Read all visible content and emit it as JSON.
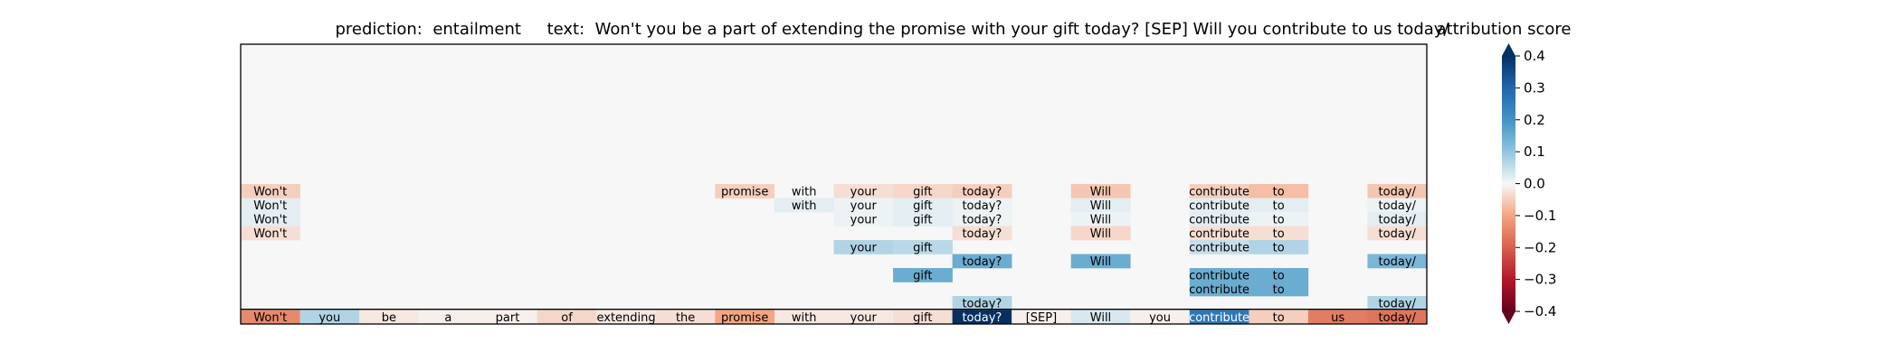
{
  "title": {
    "prediction_label": "prediction:",
    "prediction_value": "entailment",
    "text_label": "text:",
    "text_value": "Won't you be a part of extending the promise with your gift today? [SEP] Will you contribute to us today/"
  },
  "colorbar": {
    "title": "attribution score",
    "ticks": [
      "0.4",
      "0.3",
      "0.2",
      "0.1",
      "0.0",
      "−0.1",
      "−0.2",
      "−0.3",
      "−0.4"
    ],
    "tick_values": [
      0.4,
      0.3,
      0.2,
      0.1,
      0.0,
      -0.1,
      -0.2,
      -0.3,
      -0.4
    ],
    "range": [
      -0.4,
      0.4
    ],
    "colormap": "RdBu"
  },
  "chart_data": {
    "type": "heatmap",
    "tokens": [
      "Won't",
      "you",
      "be",
      "a",
      "part",
      "of",
      "extending",
      "the",
      "promise",
      "with",
      "your",
      "gift",
      "today?",
      "[SEP]",
      "Will",
      "you",
      "contribute",
      "to",
      "us",
      "today/"
    ],
    "row_count": 20,
    "rows_top_to_bottom": [
      [],
      [],
      [],
      [],
      [],
      [],
      [],
      [],
      [],
      [],
      [
        [
          0,
          -0.05
        ],
        [
          8,
          -0.05
        ],
        [
          9,
          0.0
        ],
        [
          10,
          -0.03
        ],
        [
          11,
          -0.04
        ],
        [
          12,
          -0.05
        ],
        [
          14,
          -0.06
        ],
        [
          16,
          -0.05
        ],
        [
          17,
          -0.07
        ],
        [
          19,
          -0.06
        ]
      ],
      [
        [
          0,
          0.02
        ],
        [
          9,
          0.02
        ],
        [
          10,
          0.01
        ],
        [
          11,
          0.02
        ],
        [
          12,
          0.01
        ],
        [
          14,
          0.02
        ],
        [
          16,
          0.02
        ],
        [
          17,
          0.02
        ],
        [
          19,
          0.01
        ]
      ],
      [
        [
          0,
          0.02
        ],
        [
          10,
          0.01
        ],
        [
          11,
          0.02
        ],
        [
          12,
          0.01
        ],
        [
          14,
          0.01
        ],
        [
          16,
          0.02
        ],
        [
          17,
          0.01
        ],
        [
          19,
          0.02
        ]
      ],
      [
        [
          0,
          -0.03
        ],
        [
          12,
          -0.03
        ],
        [
          14,
          -0.04
        ],
        [
          16,
          -0.03
        ],
        [
          17,
          -0.03
        ],
        [
          19,
          -0.03
        ]
      ],
      [
        [
          10,
          0.07
        ],
        [
          11,
          0.06
        ],
        [
          16,
          0.05
        ],
        [
          17,
          0.07
        ]
      ],
      [
        [
          12,
          0.15
        ],
        [
          14,
          0.15
        ],
        [
          19,
          0.13
        ]
      ],
      [
        [
          11,
          0.15
        ],
        [
          16,
          0.15
        ],
        [
          17,
          0.15
        ]
      ],
      [
        [
          16,
          0.15
        ],
        [
          17,
          0.15
        ]
      ],
      [
        [
          12,
          0.07
        ],
        [
          19,
          0.07
        ]
      ],
      [
        [
          0,
          -0.14
        ],
        [
          1,
          0.07
        ],
        [
          2,
          -0.02
        ],
        [
          3,
          -0.01
        ],
        [
          4,
          -0.01
        ],
        [
          5,
          -0.04
        ],
        [
          6,
          -0.02
        ],
        [
          7,
          -0.03
        ],
        [
          8,
          -0.1
        ],
        [
          9,
          -0.02
        ],
        [
          10,
          -0.02
        ],
        [
          11,
          -0.03
        ],
        [
          12,
          0.48
        ],
        [
          13,
          -0.01
        ],
        [
          14,
          0.03
        ],
        [
          15,
          -0.01
        ],
        [
          16,
          0.26
        ],
        [
          17,
          -0.05
        ],
        [
          18,
          -0.16
        ],
        [
          19,
          -0.17
        ]
      ]
    ]
  }
}
